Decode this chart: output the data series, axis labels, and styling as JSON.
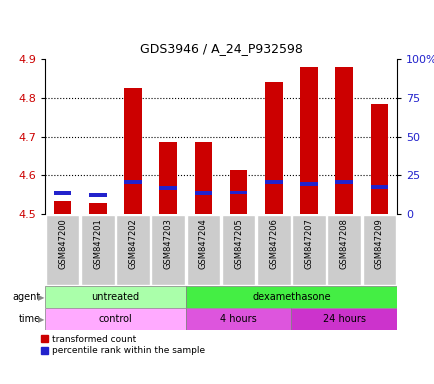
{
  "title": "GDS3946 / A_24_P932598",
  "samples": [
    "GSM847200",
    "GSM847201",
    "GSM847202",
    "GSM847203",
    "GSM847204",
    "GSM847205",
    "GSM847206",
    "GSM847207",
    "GSM847208",
    "GSM847209"
  ],
  "transformed_count": [
    4.535,
    4.53,
    4.825,
    4.685,
    4.685,
    4.615,
    4.84,
    4.88,
    4.88,
    4.785
  ],
  "percentile_values": [
    4.555,
    4.55,
    4.582,
    4.568,
    4.555,
    4.556,
    4.582,
    4.578,
    4.582,
    4.57
  ],
  "y_min": 4.5,
  "y_max": 4.9,
  "y_ticks": [
    4.5,
    4.6,
    4.7,
    4.8,
    4.9
  ],
  "right_y_ticks": [
    0,
    25,
    50,
    75,
    100
  ],
  "bar_color": "#cc0000",
  "percentile_color": "#2222cc",
  "agent_groups": [
    {
      "label": "untreated",
      "start": 0,
      "end": 4,
      "color": "#aaffaa"
    },
    {
      "label": "dexamethasone",
      "start": 4,
      "end": 10,
      "color": "#44ee44"
    }
  ],
  "time_groups": [
    {
      "label": "control",
      "start": 0,
      "end": 4,
      "color": "#ffaaff"
    },
    {
      "label": "4 hours",
      "start": 4,
      "end": 7,
      "color": "#dd55dd"
    },
    {
      "label": "24 hours",
      "start": 7,
      "end": 10,
      "color": "#cc33cc"
    }
  ],
  "legend_red": "transformed count",
  "legend_blue": "percentile rank within the sample",
  "bar_width": 0.5,
  "bar_color_edge": "none",
  "sample_box_color": "#cccccc",
  "tick_label_color_left": "#cc0000",
  "tick_label_color_right": "#2222cc",
  "grid_color": "#000000",
  "title_fontsize": 9,
  "tick_fontsize": 8,
  "label_fontsize": 7,
  "sample_fontsize": 6
}
